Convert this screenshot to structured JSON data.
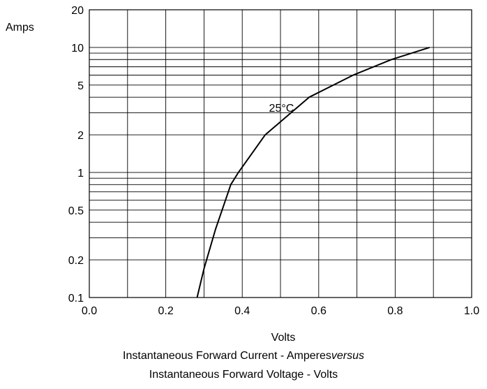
{
  "chart_data": {
    "type": "line",
    "xlabel": "Volts",
    "ylabel": "Amps",
    "x_scale": "linear",
    "y_scale": "log",
    "xlim": [
      0.0,
      1.0
    ],
    "ylim": [
      0.1,
      20
    ],
    "x_ticks": [
      "0.0",
      "0.2",
      "0.4",
      "0.6",
      "0.8",
      "1.0"
    ],
    "y_ticks": [
      {
        "value": 20,
        "label": "20"
      },
      {
        "value": 10,
        "label": "10"
      },
      {
        "value": 5,
        "label": "5"
      },
      {
        "value": 2,
        "label": "2"
      },
      {
        "value": 1,
        "label": "1"
      },
      {
        "value": 0.5,
        "label": "0.5"
      },
      {
        "value": 0.2,
        "label": "0.2"
      },
      {
        "value": 0.1,
        "label": "0.1"
      }
    ],
    "grid": true,
    "x_grid_values": [
      0.1,
      0.2,
      0.3,
      0.4,
      0.5,
      0.6,
      0.7,
      0.8,
      0.9
    ],
    "y_grid_values": [
      0.2,
      0.3,
      0.4,
      0.5,
      0.6,
      0.7,
      0.8,
      0.9,
      1,
      2,
      3,
      4,
      5,
      6,
      7,
      8,
      9,
      10
    ],
    "series": [
      {
        "name": "25°C",
        "color": "#000000",
        "points": [
          {
            "x": 0.282,
            "y": 0.1
          },
          {
            "x": 0.3,
            "y": 0.17
          },
          {
            "x": 0.33,
            "y": 0.35
          },
          {
            "x": 0.37,
            "y": 0.8
          },
          {
            "x": 0.39,
            "y": 1.0
          },
          {
            "x": 0.46,
            "y": 2.0
          },
          {
            "x": 0.575,
            "y": 4.0
          },
          {
            "x": 0.69,
            "y": 6.0
          },
          {
            "x": 0.79,
            "y": 8.0
          },
          {
            "x": 0.89,
            "y": 10.0
          }
        ]
      }
    ],
    "annotations": [
      {
        "text": "25°C",
        "x": 0.47,
        "y": 3.3
      }
    ]
  },
  "caption": {
    "line1_main": "Instantaneous Forward Current - Amperes",
    "line1_italic": "versus",
    "line2": "Instantaneous Forward Voltage - Volts"
  }
}
